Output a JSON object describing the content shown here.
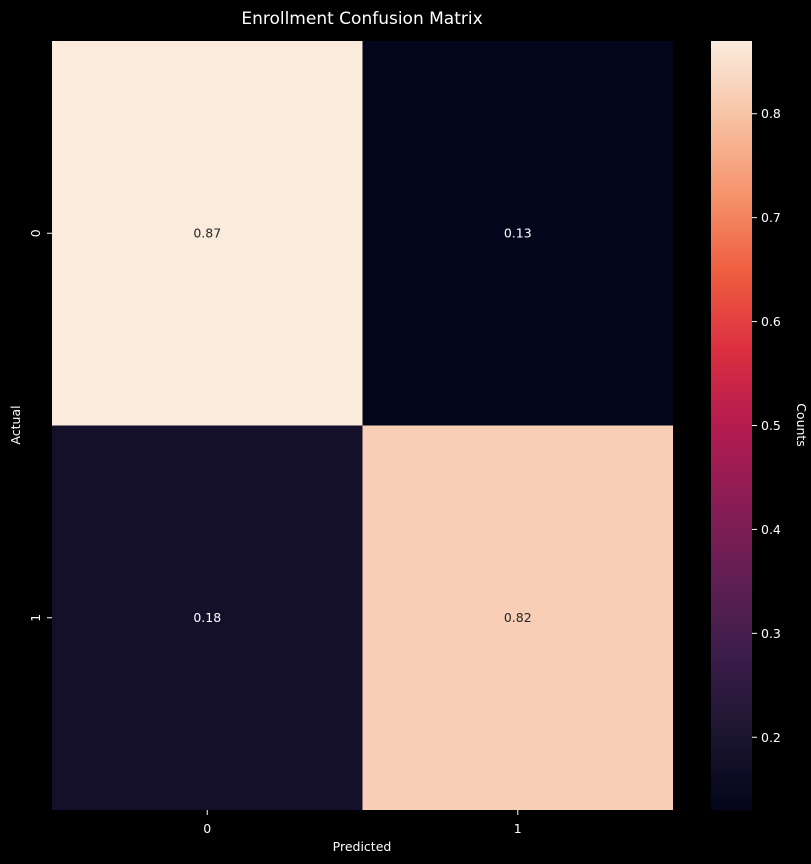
{
  "chart_data": {
    "type": "heatmap",
    "title": "Enrollment Confusion Matrix",
    "xlabel": "Predicted",
    "ylabel": "Actual",
    "x_categories": [
      "0",
      "1"
    ],
    "y_categories": [
      "0",
      "1"
    ],
    "values": [
      [
        0.87,
        0.13
      ],
      [
        0.18,
        0.82
      ]
    ],
    "annotations": [
      [
        "0.87",
        "0.13"
      ],
      [
        "0.18",
        "0.82"
      ]
    ],
    "colorbar": {
      "label": "Counts",
      "range": [
        0.13,
        0.87
      ],
      "ticks": [
        "0.2",
        "0.3",
        "0.4",
        "0.5",
        "0.6",
        "0.7",
        "0.8"
      ],
      "colormap": "rocket"
    },
    "grid": false
  },
  "colors": {
    "background": "#000000",
    "text": "#ffffff"
  }
}
